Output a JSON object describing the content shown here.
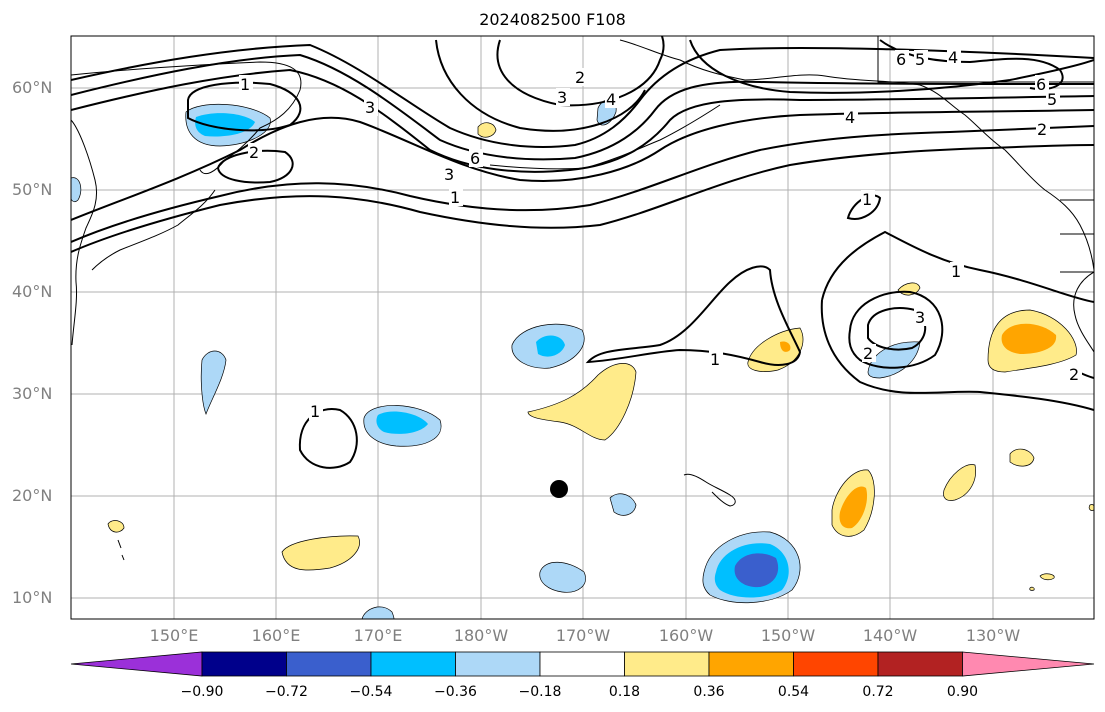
{
  "title": "2024082500 F108",
  "lat_labels": [
    "60°N",
    "50°N",
    "40°N",
    "30°N",
    "20°N",
    "10°N"
  ],
  "lon_labels": [
    "150°E",
    "160°E",
    "170°E",
    "180°W",
    "170°W",
    "160°W",
    "150°W",
    "140°W",
    "130°W"
  ],
  "contour_labels": [
    "1",
    "2",
    "3",
    "4",
    "5",
    "6"
  ],
  "colorbar": {
    "tick_labels": [
      "−0.90",
      "−0.72",
      "−0.54",
      "−0.36",
      "−0.18",
      "0.18",
      "0.36",
      "0.54",
      "0.72",
      "0.90"
    ],
    "colors": [
      "#9b30d9",
      "#00008b",
      "#3a5fcd",
      "#00bfff",
      "#add8f7",
      "#ffffff",
      "#ffeb8a",
      "#ffa500",
      "#ff4500",
      "#b22222",
      "#ff89b0"
    ]
  },
  "marker": {
    "name": "black-dot",
    "lat": 20.6,
    "lon": -172.5
  }
}
